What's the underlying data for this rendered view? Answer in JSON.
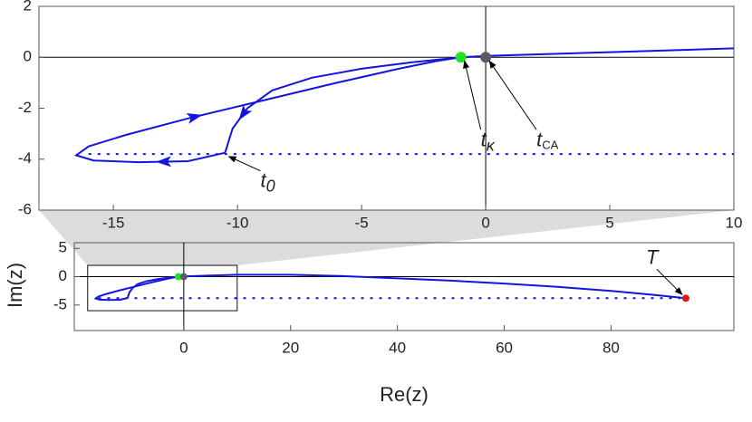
{
  "chart_data": {
    "type": "line",
    "xlabel": "Re(z)",
    "ylabel": "Im(z)",
    "color": "#1414e0",
    "panels": [
      {
        "xlim": [
          -18,
          10
        ],
        "ylim": [
          -6,
          2
        ],
        "xticks": [
          -15,
          -10,
          -5,
          0,
          5,
          10
        ],
        "yticks": [
          -6,
          -4,
          -2,
          0,
          2
        ]
      },
      {
        "xlim": [
          -20.5,
          103
        ],
        "ylim": [
          -9.5,
          6
        ],
        "xticks": [
          0,
          20,
          40,
          60,
          80
        ],
        "yticks": [
          -5,
          0,
          5
        ],
        "zoom": true
      }
    ],
    "series": [
      {
        "x": [
          -10.5,
          -12,
          -14,
          -15.8,
          -16.5,
          -16,
          -14.5,
          -12,
          -9,
          -6,
          -3.5,
          -2,
          -1
        ],
        "values": [
          -3.75,
          -4.08,
          -4.12,
          -4.05,
          -3.85,
          -3.5,
          -3.05,
          -2.4,
          -1.7,
          -1.0,
          -0.45,
          -0.15,
          0
        ],
        "style": "solid"
      },
      {
        "x": [
          -1,
          -3,
          -5,
          -7,
          -8.6,
          -9.6,
          -10.2,
          -10.5
        ],
        "values": [
          0,
          -0.2,
          -0.45,
          -0.8,
          -1.3,
          -2.0,
          -2.8,
          -3.75
        ],
        "style": "solid"
      },
      {
        "x": [
          -1,
          0,
          5,
          10,
          20,
          30,
          40,
          50,
          60,
          70,
          80,
          88,
          94
        ],
        "values": [
          0,
          0.05,
          0.2,
          0.35,
          0.35,
          0.1,
          -0.3,
          -0.7,
          -1.2,
          -1.8,
          -2.5,
          -3.2,
          -3.8
        ],
        "style": "solid"
      },
      {
        "x": [
          -16,
          93
        ],
        "values": [
          -3.8,
          -3.8
        ],
        "style": "dotted"
      }
    ],
    "points": [
      {
        "x": -1,
        "y": 0,
        "color": "#22e022"
      },
      {
        "x": 0,
        "y": 0,
        "color": "#5a5a66"
      },
      {
        "x": 94,
        "y": -3.8,
        "color": "#e01818"
      }
    ],
    "annotations": [
      {
        "text": "t",
        "sub": "κ",
        "x": -1,
        "y": 0
      },
      {
        "text": "t",
        "sub": "CA",
        "x": 0,
        "y": 0
      },
      {
        "text": "t",
        "sub": "0",
        "x": -10.5,
        "y": -3.75
      },
      {
        "text": "T",
        "x": 94,
        "y": -3.8
      }
    ]
  }
}
